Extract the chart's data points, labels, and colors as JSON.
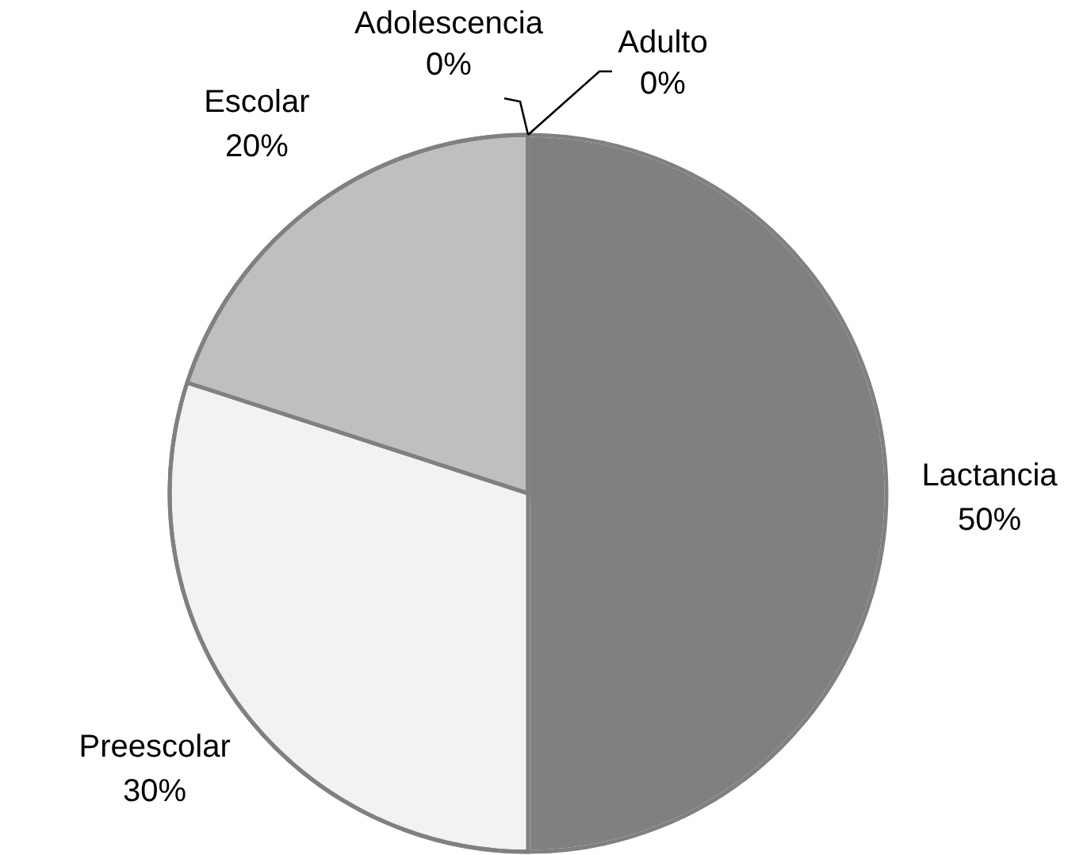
{
  "chart_data": {
    "type": "pie",
    "categories": [
      "Lactancia",
      "Preescolar",
      "Escolar",
      "Adolescencia",
      "Adulto"
    ],
    "values": [
      50,
      30,
      20,
      0,
      0
    ],
    "colors": [
      "#808080",
      "#f2f2f2",
      "#bfbfbf",
      "#a6a6a6",
      "#595959"
    ],
    "value_labels": [
      "50%",
      "30%",
      "20%",
      "0%",
      "0%"
    ]
  }
}
